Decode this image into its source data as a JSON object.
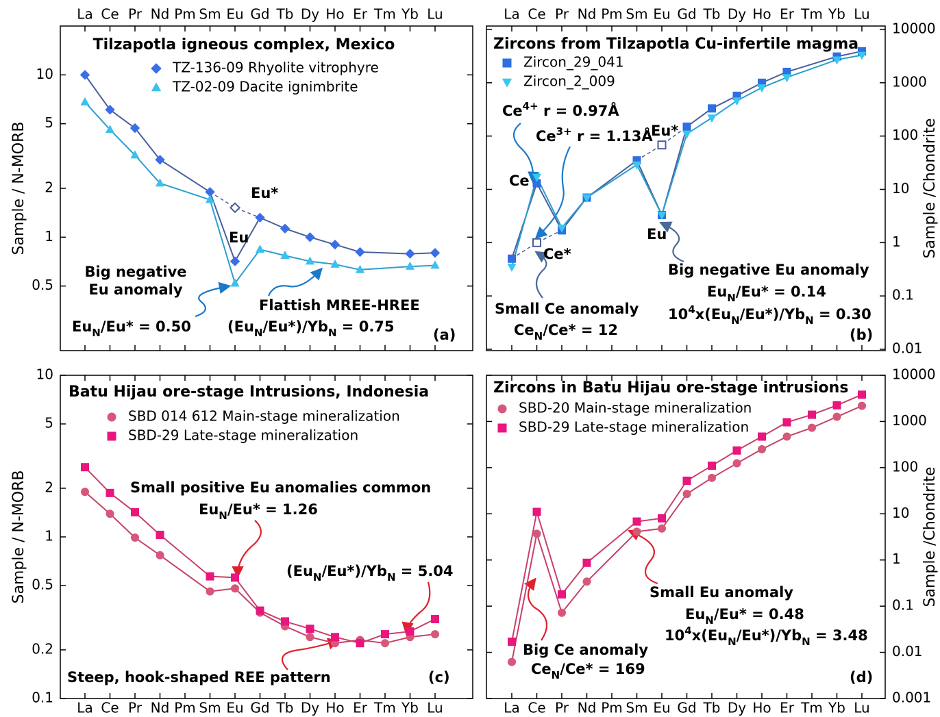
{
  "chart_data": [
    {
      "type": "line",
      "title": "Tilzapotla igneous complex, Mexico",
      "y_label": "Sample / N-MORB",
      "y_axis_position": "left",
      "category_label_position": "top",
      "log_y": true,
      "text_color": "#1a7ac9",
      "categories": [
        "La",
        "Ce",
        "Pr",
        "Nd",
        "Pm",
        "Sm",
        "Eu",
        "Gd",
        "Tb",
        "Dy",
        "Ho",
        "Er",
        "Tm",
        "Yb",
        "Lu"
      ],
      "ylim": [
        0.2,
        20
      ],
      "yticks": [
        0.5,
        1,
        2,
        5,
        10
      ],
      "series": [
        {
          "name": "TZ-136-09 Rhyolite vitrophyre",
          "color": "#3a6ee8",
          "line_color": "#4a5f9a",
          "marker": "diamond",
          "values": [
            10,
            6.1,
            4.7,
            3.0,
            null,
            1.9,
            0.71,
            1.32,
            1.13,
            1.0,
            0.9,
            0.81,
            null,
            0.79,
            0.8
          ]
        },
        {
          "name": "TZ-02-09 Dacite ignimbrite",
          "color": "#3cc0ee",
          "line_color": "#2a9fd0",
          "marker": "triangle",
          "values": [
            6.8,
            4.6,
            3.2,
            2.15,
            null,
            1.7,
            0.52,
            0.84,
            0.77,
            0.71,
            0.68,
            0.63,
            null,
            0.66,
            0.67
          ]
        }
      ],
      "interpolated_values": [
        null,
        null,
        null,
        null,
        null,
        null,
        1.52,
        null,
        null,
        null,
        null,
        null,
        null,
        null,
        null
      ],
      "annotations": [
        [
          "Eu*"
        ],
        [
          "Eu"
        ],
        [
          "Big negative"
        ],
        [
          "Eu anomaly"
        ],
        [
          "Eu",
          "N",
          "/Eu* = 0.50"
        ],
        [
          "Flattish MREE-HREE"
        ],
        [
          "(Eu",
          "N",
          "/Eu*)/Yb",
          "N",
          " = 0.75"
        ],
        [
          "(a)"
        ]
      ]
    },
    {
      "type": "line",
      "title": "Zircons from Tilzapotla Cu-infertile magma",
      "y_label": "Sample /Chondrite",
      "y_axis_position": "right",
      "category_label_position": "top",
      "log_y": true,
      "text_color": "#1a7ac9",
      "categories": [
        "La",
        "Ce",
        "Pr",
        "Nd",
        "Pm",
        "Sm",
        "Eu",
        "Gd",
        "Tb",
        "Dy",
        "Ho",
        "Er",
        "Tm",
        "Yb",
        "Lu"
      ],
      "ylim": [
        0.01,
        10000
      ],
      "yticks": [
        0.01,
        0.1,
        1,
        10,
        100,
        1000,
        10000
      ],
      "series": [
        {
          "name": "Zircon_29_041",
          "color": "#2f6fe0",
          "line_color": "#4a5f9a",
          "marker": "square",
          "values": [
            0.5,
            13,
            1.7,
            7,
            null,
            35,
            3.3,
            150,
            330,
            570,
            1000,
            1600,
            null,
            3100,
            3900
          ]
        },
        {
          "name": "Zircon_2_009",
          "color": "#36c8f0",
          "line_color": "#2a9fd0",
          "marker": "triangle-down",
          "values": [
            0.35,
            17,
            1.9,
            7,
            null,
            29,
            3.3,
            110,
            220,
            460,
            810,
            1260,
            null,
            2700,
            3300
          ]
        }
      ],
      "interpolated_values": [
        null,
        1,
        null,
        null,
        null,
        null,
        68,
        null,
        null,
        null,
        null,
        null,
        null,
        null,
        null
      ],
      "annotations": [
        [
          "Ce",
          "4+",
          " r = 0.97Å"
        ],
        [
          "Ce",
          "3+",
          " r = 1.13Å"
        ],
        [
          "Eu*"
        ],
        [
          "Ce"
        ],
        [
          "Ce*"
        ],
        [
          "Eu"
        ],
        [
          "Small Ce anomaly"
        ],
        [
          "Ce",
          "N",
          "/Ce* = 12"
        ],
        [
          "Big negative Eu anomaly"
        ],
        [
          "Eu",
          "N",
          "/Eu* = 0.14"
        ],
        [
          "10",
          "4",
          "x(Eu",
          "N",
          "/Eu*)/Yb",
          "N",
          " = 0.30"
        ],
        [
          "(b)"
        ]
      ]
    },
    {
      "type": "line",
      "title": "Batu Hijau ore-stage Intrusions, Indonesia",
      "y_label": "Sample / N-MORB",
      "y_axis_position": "left",
      "category_label_position": "bottom",
      "log_y": true,
      "text_color": "#e0157c",
      "categories": [
        "La",
        "Ce",
        "Pr",
        "Nd",
        "Pm",
        "Sm",
        "Eu",
        "Gd",
        "Tb",
        "Dy",
        "Ho",
        "Er",
        "Tm",
        "Yb",
        "Lu"
      ],
      "ylim": [
        0.1,
        10
      ],
      "yticks": [
        0.1,
        0.2,
        0.5,
        1,
        2,
        5,
        10
      ],
      "series": [
        {
          "name": "SBD 014 612 Main-stage mineralization",
          "color": "#d6577a",
          "line_color": "#c8406a",
          "marker": "circle",
          "values": [
            1.9,
            1.39,
            0.99,
            0.77,
            null,
            0.46,
            0.48,
            0.34,
            0.28,
            0.24,
            0.22,
            0.23,
            0.22,
            0.24,
            0.25
          ]
        },
        {
          "name": "SBD-29 Late-stage mineralization",
          "color": "#e8167e",
          "line_color": "#c8406a",
          "marker": "square",
          "values": [
            2.7,
            1.87,
            1.42,
            1.03,
            null,
            0.57,
            0.56,
            0.35,
            0.3,
            0.27,
            0.24,
            0.22,
            0.25,
            0.26,
            0.31
          ]
        }
      ],
      "annotations": [
        [
          "Small positive Eu anomalies common"
        ],
        [
          "Eu",
          "N",
          "/Eu* = 1.26"
        ],
        [
          "(Eu",
          "N",
          "/Eu*)/Yb",
          "N",
          " = 5.04"
        ],
        [
          "Steep, hook-shaped REE pattern"
        ],
        [
          "(c)"
        ]
      ]
    },
    {
      "type": "line",
      "title": "Zircons in Batu Hijau ore-stage intrusions",
      "y_label": "Sample /Chondrite",
      "y_axis_position": "right",
      "category_label_position": "bottom",
      "log_y": true,
      "text_color": "#d62e5c",
      "categories": [
        "La",
        "Ce",
        "Pr",
        "Nd",
        "Pm",
        "Sm",
        "Eu",
        "Gd",
        "Tb",
        "Dy",
        "Ho",
        "Er",
        "Tm",
        "Yb",
        "Lu"
      ],
      "ylim": [
        0.001,
        10000
      ],
      "yticks": [
        0.001,
        0.01,
        0.1,
        1,
        10,
        100,
        1000,
        10000
      ],
      "series": [
        {
          "name": "SBD-20 Main-stage mineralization",
          "color": "#d6577a",
          "line_color": "#c8406a",
          "marker": "circle",
          "values": [
            0.0062,
            3.7,
            0.072,
            0.34,
            null,
            4.1,
            4.8,
            27,
            60,
            124,
            250,
            470,
            730,
            1260,
            2180
          ]
        },
        {
          "name": "SBD-29 Late-stage mineralization",
          "color": "#e8167e",
          "line_color": "#c8406a",
          "marker": "square",
          "values": [
            0.017,
            11,
            0.18,
            0.87,
            null,
            6.8,
            8,
            52,
            110,
            235,
            470,
            960,
            1400,
            2240,
            3800
          ]
        }
      ],
      "annotations": [
        [
          "Small Eu anomaly"
        ],
        [
          "Eu",
          "N",
          "/Eu* = 0.48"
        ],
        [
          "10",
          "4",
          "x(Eu",
          "N",
          "/Eu*)/Yb",
          "N",
          " = 3.48"
        ],
        [
          "Big Ce anomaly"
        ],
        [
          "Ce",
          "N",
          "/Ce* = 169"
        ],
        [
          "(d)"
        ]
      ]
    }
  ]
}
